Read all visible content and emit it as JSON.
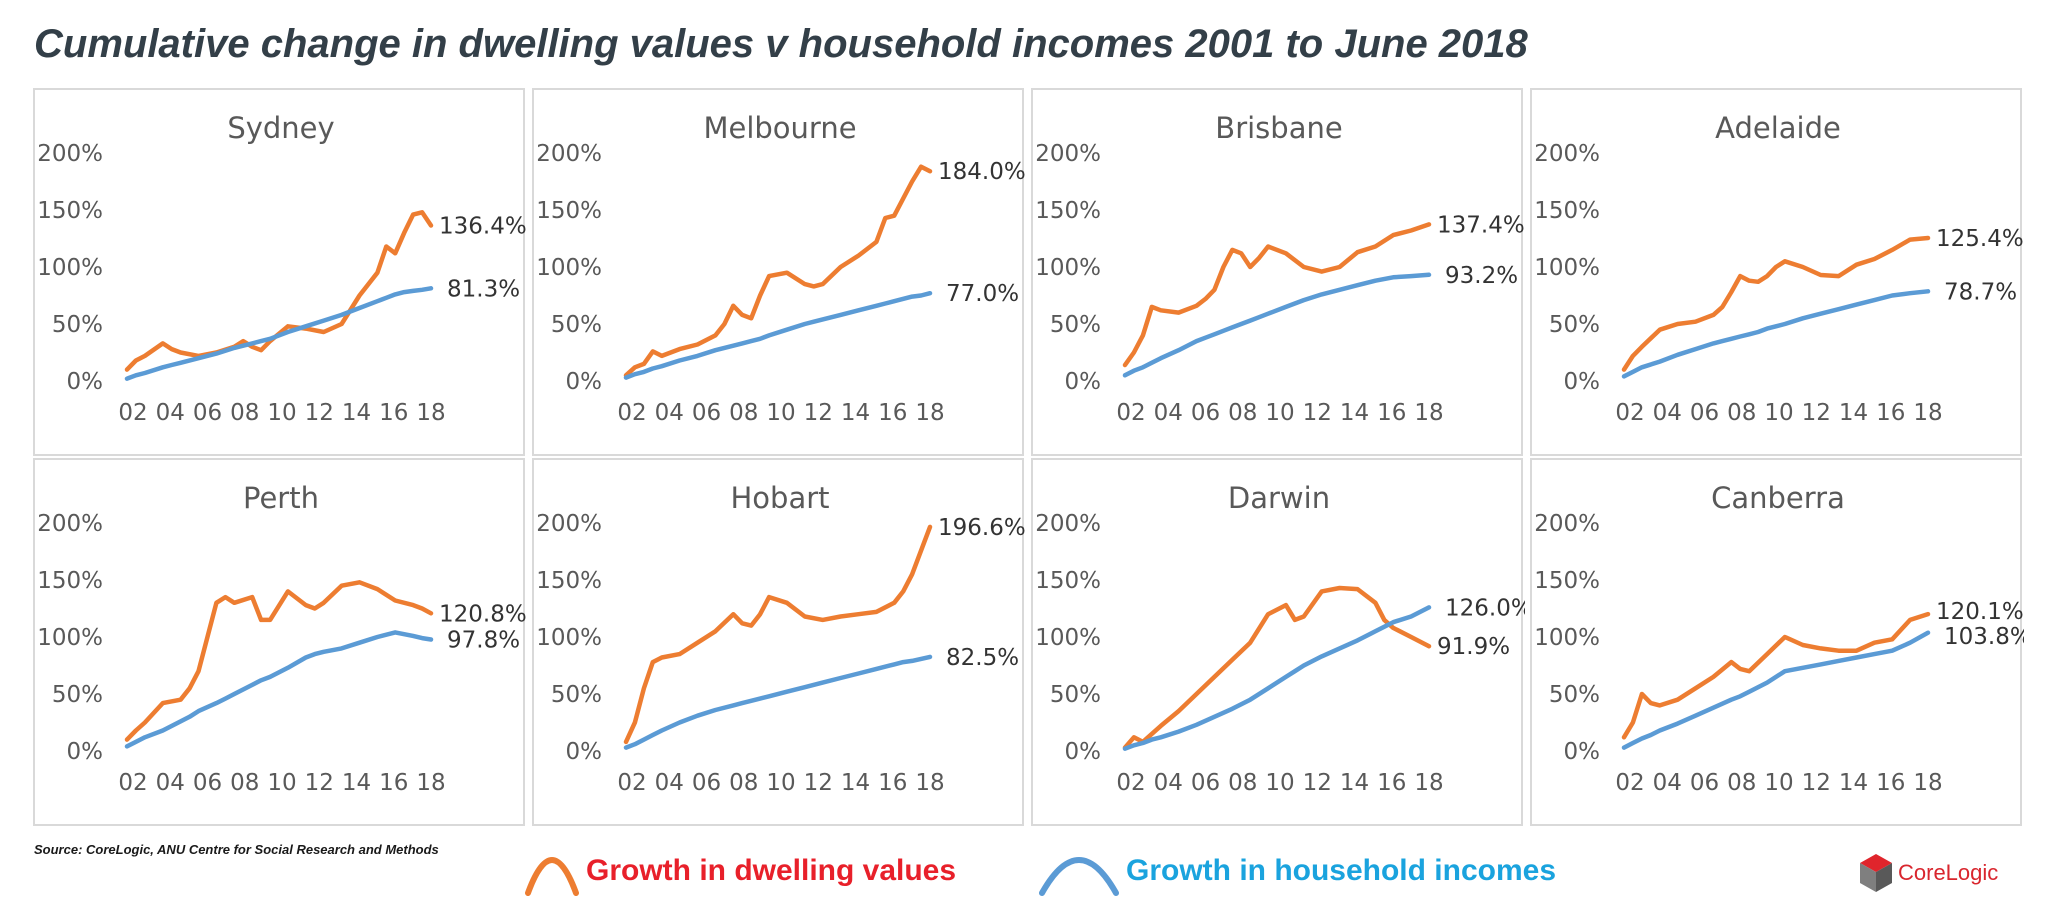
{
  "title": "Cumulative change in dwelling values v household incomes 2001 to June 2018",
  "source": "Source:  CoreLogic, ANU Centre for Social Research and Methods",
  "legend": {
    "dwelling_label": "Growth in dwelling values",
    "income_label": "Growth in household incomes",
    "dwelling_color": "#ed7d31",
    "income_color": "#5b9bd5",
    "dwelling_text_color": "#e8202a",
    "income_text_color": "#1aa3de"
  },
  "logo": {
    "text": "CoreLogic",
    "icon": "corelogic-cube-icon"
  },
  "chart_data": [
    {
      "type": "line",
      "title": "Sydney",
      "x": [
        2001.0,
        2001.5,
        2002.0,
        2003.0,
        2003.5,
        2004.0,
        2005.0,
        2006.0,
        2007.0,
        2007.5,
        2008.0,
        2008.5,
        2009.0,
        2010.0,
        2011.0,
        2012.0,
        2013.0,
        2014.0,
        2015.0,
        2015.5,
        2016.0,
        2016.5,
        2017.0,
        2017.5,
        2018.0
      ],
      "xticks": [
        "02",
        "04",
        "06",
        "08",
        "10",
        "12",
        "14",
        "16",
        "18"
      ],
      "yticks": [
        "0%",
        "50%",
        "100%",
        "150%",
        "200%"
      ],
      "ylim": [
        0,
        200
      ],
      "series": [
        {
          "name": "Growth in dwelling values",
          "values": [
            10,
            18,
            22,
            33,
            28,
            25,
            22,
            25,
            30,
            35,
            30,
            27,
            35,
            48,
            46,
            43,
            50,
            75,
            95,
            118,
            112,
            130,
            146,
            148,
            136.4
          ],
          "end_label": "136.4%"
        },
        {
          "name": "Growth in household incomes",
          "values": [
            2,
            5,
            7,
            12,
            14,
            16,
            20,
            24,
            29,
            31,
            33,
            35,
            37,
            43,
            48,
            53,
            58,
            64,
            70,
            73,
            76,
            78,
            79,
            80,
            81.3
          ],
          "end_label": "81.3%"
        }
      ]
    },
    {
      "type": "line",
      "title": "Melbourne",
      "x": [
        2001.0,
        2001.5,
        2002.0,
        2002.5,
        2003.0,
        2004.0,
        2005.0,
        2006.0,
        2006.5,
        2007.0,
        2007.5,
        2008.0,
        2008.5,
        2009.0,
        2010.0,
        2011.0,
        2011.5,
        2012.0,
        2013.0,
        2014.0,
        2015.0,
        2015.5,
        2016.0,
        2017.0,
        2017.5,
        2018.0
      ],
      "xticks": [
        "02",
        "04",
        "06",
        "08",
        "10",
        "12",
        "14",
        "16",
        "18"
      ],
      "yticks": [
        "0%",
        "50%",
        "100%",
        "150%",
        "200%"
      ],
      "ylim": [
        0,
        200
      ],
      "series": [
        {
          "name": "Growth in dwelling values",
          "values": [
            5,
            12,
            15,
            26,
            22,
            28,
            32,
            40,
            50,
            66,
            58,
            55,
            75,
            92,
            95,
            85,
            83,
            85,
            100,
            110,
            122,
            143,
            145,
            175,
            188,
            184
          ],
          "end_label": "184.0%"
        },
        {
          "name": "Growth in household incomes",
          "values": [
            3,
            6,
            8,
            11,
            13,
            18,
            22,
            27,
            29,
            31,
            33,
            35,
            37,
            40,
            45,
            50,
            52,
            54,
            58,
            62,
            66,
            68,
            70,
            74,
            75,
            77
          ],
          "end_label": "77.0%"
        }
      ]
    },
    {
      "type": "line",
      "title": "Brisbane",
      "x": [
        2001.0,
        2001.5,
        2002.0,
        2002.5,
        2003.0,
        2004.0,
        2005.0,
        2005.5,
        2006.0,
        2006.5,
        2007.0,
        2007.5,
        2008.0,
        2008.5,
        2009.0,
        2010.0,
        2011.0,
        2012.0,
        2013.0,
        2014.0,
        2015.0,
        2016.0,
        2017.0,
        2018.0
      ],
      "xticks": [
        "02",
        "04",
        "06",
        "08",
        "10",
        "12",
        "14",
        "16",
        "18"
      ],
      "yticks": [
        "0%",
        "50%",
        "100%",
        "150%",
        "200%"
      ],
      "ylim": [
        0,
        200
      ],
      "series": [
        {
          "name": "Growth in dwelling values",
          "values": [
            14,
            25,
            40,
            65,
            62,
            60,
            66,
            72,
            80,
            100,
            115,
            112,
            100,
            108,
            118,
            112,
            100,
            96,
            100,
            113,
            118,
            128,
            132,
            137.4
          ],
          "end_label": "137.4%"
        },
        {
          "name": "Growth in household incomes",
          "values": [
            5,
            9,
            12,
            16,
            20,
            27,
            35,
            38,
            41,
            44,
            47,
            50,
            53,
            56,
            59,
            65,
            71,
            76,
            80,
            84,
            88,
            91,
            92,
            93.2
          ],
          "end_label": "93.2%"
        }
      ]
    },
    {
      "type": "line",
      "title": "Adelaide",
      "x": [
        2001.0,
        2001.5,
        2002.0,
        2003.0,
        2004.0,
        2005.0,
        2006.0,
        2006.5,
        2007.0,
        2007.5,
        2008.0,
        2008.5,
        2009.0,
        2009.5,
        2010.0,
        2011.0,
        2012.0,
        2013.0,
        2014.0,
        2015.0,
        2016.0,
        2017.0,
        2018.0
      ],
      "xticks": [
        "02",
        "04",
        "06",
        "08",
        "10",
        "12",
        "14",
        "16",
        "18"
      ],
      "yticks": [
        "0%",
        "50%",
        "100%",
        "150%",
        "200%"
      ],
      "ylim": [
        0,
        200
      ],
      "series": [
        {
          "name": "Growth in dwelling values",
          "values": [
            10,
            22,
            30,
            45,
            50,
            52,
            58,
            65,
            78,
            92,
            88,
            87,
            92,
            100,
            105,
            100,
            93,
            92,
            102,
            107,
            115,
            124,
            125.4
          ],
          "end_label": "125.4%"
        },
        {
          "name": "Growth in household incomes",
          "values": [
            4,
            8,
            12,
            17,
            23,
            28,
            33,
            35,
            37,
            39,
            41,
            43,
            46,
            48,
            50,
            55,
            59,
            63,
            67,
            71,
            75,
            77,
            78.7
          ],
          "end_label": "78.7%"
        }
      ]
    },
    {
      "type": "line",
      "title": "Perth",
      "x": [
        2001.0,
        2001.5,
        2002.0,
        2003.0,
        2004.0,
        2004.5,
        2005.0,
        2006.0,
        2006.5,
        2007.0,
        2008.0,
        2008.5,
        2009.0,
        2010.0,
        2011.0,
        2011.5,
        2012.0,
        2013.0,
        2014.0,
        2015.0,
        2016.0,
        2017.0,
        2017.5,
        2018.0
      ],
      "xticks": [
        "02",
        "04",
        "06",
        "08",
        "10",
        "12",
        "14",
        "16",
        "18"
      ],
      "yticks": [
        "0%",
        "50%",
        "100%",
        "150%",
        "200%"
      ],
      "ylim": [
        0,
        200
      ],
      "series": [
        {
          "name": "Growth in dwelling values",
          "values": [
            10,
            18,
            25,
            42,
            45,
            55,
            70,
            130,
            135,
            130,
            135,
            115,
            115,
            140,
            128,
            125,
            130,
            145,
            148,
            142,
            132,
            128,
            125,
            120.8
          ],
          "end_label": "120.8%"
        },
        {
          "name": "Growth in household incomes",
          "values": [
            4,
            8,
            12,
            18,
            26,
            30,
            35,
            42,
            46,
            50,
            58,
            62,
            65,
            73,
            82,
            85,
            87,
            90,
            95,
            100,
            104,
            101,
            99,
            97.8
          ],
          "end_label": "97.8%"
        }
      ]
    },
    {
      "type": "line",
      "title": "Hobart",
      "x": [
        2001.0,
        2001.5,
        2002.0,
        2002.5,
        2003.0,
        2004.0,
        2005.0,
        2006.0,
        2007.0,
        2007.5,
        2008.0,
        2008.5,
        2009.0,
        2010.0,
        2011.0,
        2012.0,
        2013.0,
        2014.0,
        2015.0,
        2016.0,
        2016.5,
        2017.0,
        2018.0
      ],
      "xticks": [
        "02",
        "04",
        "06",
        "08",
        "10",
        "12",
        "14",
        "16",
        "18"
      ],
      "yticks": [
        "0%",
        "50%",
        "100%",
        "150%",
        "200%"
      ],
      "ylim": [
        0,
        200
      ],
      "series": [
        {
          "name": "Growth in dwelling values",
          "values": [
            8,
            25,
            55,
            78,
            82,
            85,
            95,
            105,
            120,
            112,
            110,
            120,
            135,
            130,
            118,
            115,
            118,
            120,
            122,
            130,
            140,
            155,
            196.6
          ],
          "end_label": "196.6%"
        },
        {
          "name": "Growth in household incomes",
          "values": [
            3,
            6,
            10,
            14,
            18,
            25,
            31,
            36,
            40,
            42,
            44,
            46,
            48,
            52,
            56,
            60,
            64,
            68,
            72,
            76,
            78,
            79,
            82.5
          ],
          "end_label": "82.5%"
        }
      ]
    },
    {
      "type": "line",
      "title": "Darwin",
      "x": [
        2001.0,
        2001.5,
        2002.0,
        2002.5,
        2003.0,
        2004.0,
        2005.0,
        2006.0,
        2007.0,
        2008.0,
        2009.0,
        2010.0,
        2010.5,
        2011.0,
        2012.0,
        2013.0,
        2014.0,
        2015.0,
        2015.5,
        2016.0,
        2017.0,
        2018.0
      ],
      "xticks": [
        "02",
        "04",
        "06",
        "08",
        "10",
        "12",
        "14",
        "16",
        "18"
      ],
      "yticks": [
        "0%",
        "50%",
        "100%",
        "150%",
        "200%"
      ],
      "ylim": [
        0,
        200
      ],
      "series": [
        {
          "name": "Growth in dwelling values",
          "values": [
            3,
            12,
            8,
            15,
            22,
            35,
            50,
            65,
            80,
            95,
            120,
            128,
            115,
            118,
            140,
            143,
            142,
            130,
            115,
            108,
            100,
            91.9
          ],
          "end_label": "91.9%"
        },
        {
          "name": "Growth in household incomes",
          "values": [
            2,
            5,
            7,
            10,
            12,
            17,
            23,
            30,
            37,
            45,
            55,
            65,
            70,
            75,
            83,
            90,
            97,
            105,
            109,
            113,
            118,
            126.0
          ],
          "end_label": "126.0%"
        }
      ]
    },
    {
      "type": "line",
      "title": "Canberra",
      "x": [
        2001.0,
        2001.5,
        2002.0,
        2002.5,
        2003.0,
        2004.0,
        2005.0,
        2006.0,
        2007.0,
        2007.5,
        2008.0,
        2009.0,
        2010.0,
        2011.0,
        2012.0,
        2013.0,
        2014.0,
        2015.0,
        2016.0,
        2017.0,
        2018.0
      ],
      "xticks": [
        "02",
        "04",
        "06",
        "08",
        "10",
        "12",
        "14",
        "16",
        "18"
      ],
      "yticks": [
        "0%",
        "50%",
        "100%",
        "150%",
        "200%"
      ],
      "ylim": [
        0,
        200
      ],
      "series": [
        {
          "name": "Growth in dwelling values",
          "values": [
            12,
            25,
            50,
            42,
            40,
            45,
            55,
            65,
            78,
            72,
            70,
            85,
            100,
            93,
            90,
            88,
            88,
            95,
            98,
            115,
            120.1
          ],
          "end_label": "120.1%"
        },
        {
          "name": "Growth in household incomes",
          "values": [
            3,
            7,
            11,
            14,
            18,
            24,
            31,
            38,
            45,
            48,
            52,
            60,
            70,
            73,
            76,
            79,
            82,
            85,
            88,
            95,
            103.8
          ],
          "end_label": "103.8%"
        }
      ]
    }
  ]
}
